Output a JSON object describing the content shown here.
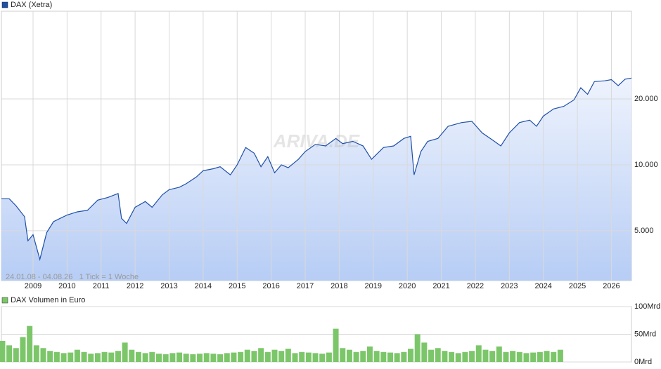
{
  "chart_data": [
    {
      "type": "area",
      "title": "DAX (Xetra)",
      "subtitle": "24.01.08 - 04.08.26   1 Tick = 1 Woche",
      "watermark": "ARIVA.DE",
      "color": "#1f4fa8",
      "fill_top": "#eef3fd",
      "fill_bottom": "#b7cdf5",
      "log_scale": true,
      "grid": true,
      "xlim": [
        2008.07,
        2026.59
      ],
      "xticks": [
        2009,
        2010,
        2011,
        2012,
        2013,
        2014,
        2015,
        2016,
        2017,
        2018,
        2019,
        2020,
        2021,
        2022,
        2023,
        2024,
        2025,
        2026
      ],
      "ylim": [
        2960,
        50300
      ],
      "yticks": [
        {
          "value": 5000,
          "label": "5.000"
        },
        {
          "value": 10000,
          "label": "10.000"
        },
        {
          "value": 20000,
          "label": "20.000"
        }
      ],
      "x": [
        2008.07,
        2008.3,
        2008.5,
        2008.75,
        2008.85,
        2009.0,
        2009.2,
        2009.4,
        2009.6,
        2009.8,
        2010.0,
        2010.3,
        2010.6,
        2010.9,
        2011.2,
        2011.5,
        2011.6,
        2011.75,
        2012.0,
        2012.3,
        2012.5,
        2012.8,
        2013.0,
        2013.3,
        2013.5,
        2013.8,
        2014.0,
        2014.3,
        2014.5,
        2014.8,
        2015.0,
        2015.25,
        2015.5,
        2015.7,
        2015.9,
        2016.1,
        2016.3,
        2016.5,
        2016.8,
        2017.0,
        2017.3,
        2017.6,
        2017.9,
        2018.1,
        2018.4,
        2018.7,
        2018.95,
        2019.3,
        2019.6,
        2019.9,
        2020.1,
        2020.2,
        2020.4,
        2020.6,
        2020.9,
        2021.2,
        2021.6,
        2021.9,
        2022.2,
        2022.5,
        2022.75,
        2023.0,
        2023.3,
        2023.6,
        2023.8,
        2024.0,
        2024.3,
        2024.6,
        2024.9,
        2025.1,
        2025.3,
        2025.5,
        2025.8,
        2026.0,
        2026.2,
        2026.4,
        2026.59
      ],
      "values": [
        7000,
        7000,
        6500,
        5800,
        4500,
        4800,
        3700,
        4900,
        5500,
        5700,
        5900,
        6100,
        6200,
        6900,
        7100,
        7400,
        5700,
        5400,
        6400,
        6800,
        6400,
        7300,
        7700,
        7900,
        8200,
        8800,
        9400,
        9600,
        9800,
        9000,
        10000,
        12000,
        11300,
        9800,
        10900,
        9200,
        10000,
        9700,
        10600,
        11500,
        12400,
        12200,
        13200,
        12500,
        12800,
        12200,
        10600,
        12000,
        12200,
        13200,
        13500,
        9000,
        11500,
        12800,
        13200,
        15000,
        15600,
        15800,
        14000,
        13000,
        12200,
        14000,
        15600,
        16000,
        15000,
        16700,
        18000,
        18500,
        19800,
        22500,
        21000,
        24000,
        24200,
        24500,
        23000,
        24600,
        24900
      ]
    },
    {
      "type": "bar",
      "title": "DAX Volumen in Euro",
      "color": "#7cc66a",
      "grid": true,
      "xlim": [
        2008.07,
        2026.59
      ],
      "ylim": [
        0,
        100
      ],
      "yticks": [
        {
          "value": 0,
          "label": "0Mrd"
        },
        {
          "value": 50,
          "label": "50Mrd"
        },
        {
          "value": 100,
          "label": "100Mrd"
        }
      ],
      "x": [
        2008.1,
        2008.3,
        2008.5,
        2008.7,
        2008.9,
        2009.1,
        2009.3,
        2009.5,
        2009.7,
        2009.9,
        2010.1,
        2010.3,
        2010.5,
        2010.7,
        2010.9,
        2011.1,
        2011.3,
        2011.5,
        2011.7,
        2011.9,
        2012.1,
        2012.3,
        2012.5,
        2012.7,
        2012.9,
        2013.1,
        2013.3,
        2013.5,
        2013.7,
        2013.9,
        2014.1,
        2014.3,
        2014.5,
        2014.7,
        2014.9,
        2015.1,
        2015.3,
        2015.5,
        2015.7,
        2015.9,
        2016.1,
        2016.3,
        2016.5,
        2016.7,
        2016.9,
        2017.1,
        2017.3,
        2017.5,
        2017.7,
        2017.9,
        2018.1,
        2018.3,
        2018.5,
        2018.7,
        2018.9,
        2019.1,
        2019.3,
        2019.5,
        2019.7,
        2019.9,
        2020.1,
        2020.3,
        2020.5,
        2020.7,
        2020.9,
        2021.1,
        2021.3,
        2021.5,
        2021.7,
        2021.9,
        2022.1,
        2022.3,
        2022.5,
        2022.7,
        2022.9,
        2023.1,
        2023.3,
        2023.5,
        2023.7,
        2023.9,
        2024.1,
        2024.3,
        2024.5
      ],
      "values": [
        38,
        30,
        25,
        45,
        65,
        30,
        25,
        20,
        18,
        16,
        17,
        22,
        18,
        15,
        16,
        18,
        17,
        20,
        35,
        22,
        18,
        16,
        18,
        15,
        14,
        16,
        17,
        15,
        14,
        15,
        16,
        15,
        14,
        16,
        17,
        18,
        22,
        20,
        25,
        18,
        22,
        20,
        24,
        16,
        18,
        17,
        16,
        15,
        17,
        60,
        25,
        22,
        18,
        20,
        28,
        20,
        18,
        17,
        16,
        18,
        24,
        50,
        35,
        22,
        25,
        20,
        18,
        16,
        18,
        20,
        30,
        22,
        20,
        28,
        18,
        20,
        18,
        16,
        17,
        18,
        20,
        18,
        22
      ]
    }
  ]
}
